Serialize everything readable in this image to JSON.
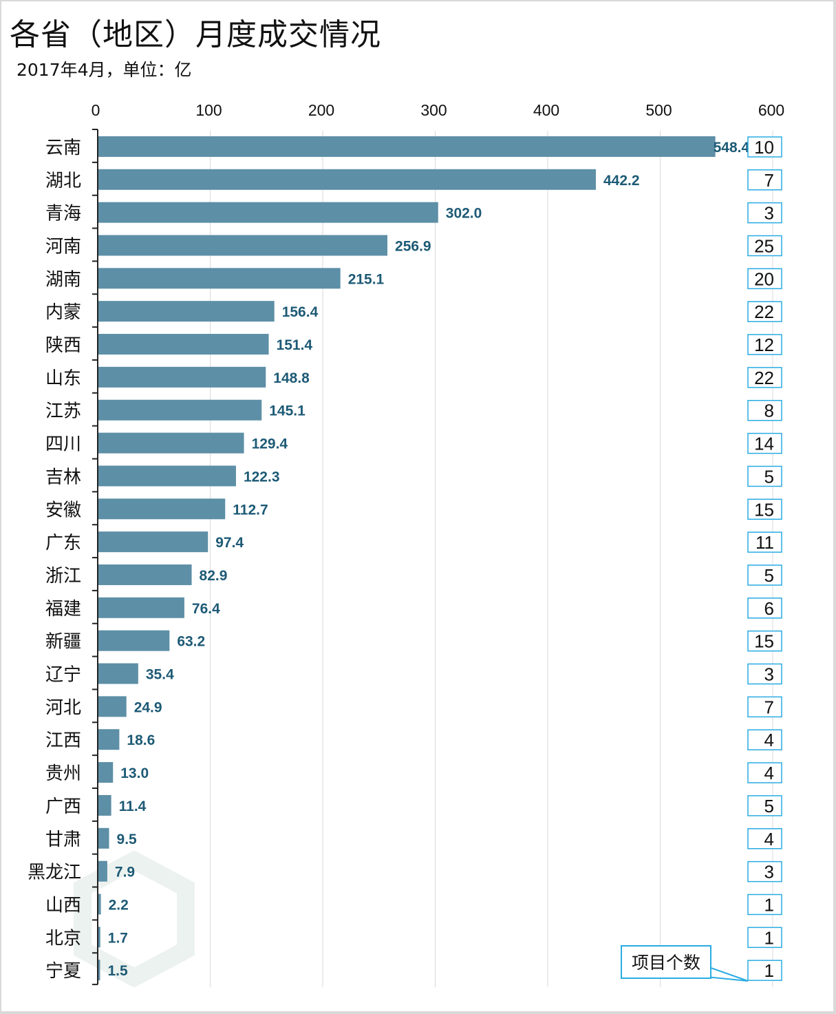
{
  "header": {
    "title": "各省（地区）月度成交情况",
    "subtitle": "2017年4月，单位：亿"
  },
  "colors": {
    "bar": "#5d8fa6",
    "value_label": "#1d5a75",
    "count_box_border": "#29abe2",
    "gridline": "#d9d9d9",
    "axis": "#222222"
  },
  "chart_data": {
    "type": "bar",
    "orientation": "horizontal",
    "title": "各省（地区）月度成交情况",
    "subtitle": "2017年4月，单位：亿",
    "xlabel": "",
    "ylabel": "",
    "xlim": [
      0,
      600
    ],
    "x_ticks": [
      "0",
      "100",
      "200",
      "300",
      "400",
      "500",
      "600"
    ],
    "x_tick_values": [
      0,
      100,
      200,
      300,
      400,
      500,
      600
    ],
    "grid": true,
    "categories": [
      "云南",
      "湖北",
      "青海",
      "河南",
      "湖南",
      "内蒙",
      "陕西",
      "山东",
      "江苏",
      "四川",
      "吉林",
      "安徽",
      "广东",
      "浙江",
      "福建",
      "新疆",
      "辽宁",
      "河北",
      "江西",
      "贵州",
      "广西",
      "甘肃",
      "黑龙江",
      "山西",
      "北京",
      "宁夏"
    ],
    "values": [
      548.4,
      442.2,
      302.0,
      256.9,
      215.1,
      156.4,
      151.4,
      148.8,
      145.1,
      129.4,
      122.3,
      112.7,
      97.4,
      82.9,
      76.4,
      63.2,
      35.4,
      24.9,
      18.6,
      13.0,
      11.4,
      9.5,
      7.9,
      2.2,
      1.7,
      1.5
    ],
    "value_labels": [
      "548.4",
      "442.2",
      "302.0",
      "256.9",
      "215.1",
      "156.4",
      "151.4",
      "148.8",
      "145.1",
      "129.4",
      "122.3",
      "112.7",
      "97.4",
      "82.9",
      "76.4",
      "63.2",
      "35.4",
      "24.9",
      "18.6",
      "13.0",
      "11.4",
      "9.5",
      "7.9",
      "2.2",
      "1.7",
      "1.5"
    ],
    "counts_label": "项目个数",
    "counts": [
      "10",
      "7",
      "3",
      "25",
      "20",
      "22",
      "12",
      "22",
      "8",
      "14",
      "5",
      "15",
      "11",
      "5",
      "6",
      "15",
      "3",
      "7",
      "4",
      "4",
      "5",
      "4",
      "3",
      "1",
      "1",
      "1"
    ]
  }
}
